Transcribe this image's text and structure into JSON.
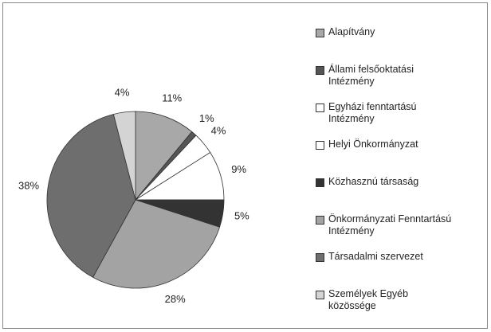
{
  "chart_data": {
    "type": "pie",
    "categories": [
      "Alapítvány",
      "Állami felsőoktatási\nIntézmény",
      "Egyházi fenntartású\nIntézmény",
      "Helyi Önkormányzat",
      "Közhasznú társaság",
      "Önkormányzati Fenntartású\nIntézmény",
      "Társadalmi szervezet",
      "Személyek Egyéb\nközössége"
    ],
    "values": [
      11,
      1,
      4,
      9,
      5,
      28,
      38,
      4
    ],
    "value_labels": [
      "11%",
      "1%",
      "4%",
      "9%",
      "5%",
      "28%",
      "38%",
      "4%"
    ],
    "colors": [
      "#a8a8a8",
      "#555555",
      "#ffffff",
      "#ffffff",
      "#333333",
      "#a3a3a3",
      "#6e6e6e",
      "#d4d4d4"
    ],
    "legend": "right"
  }
}
